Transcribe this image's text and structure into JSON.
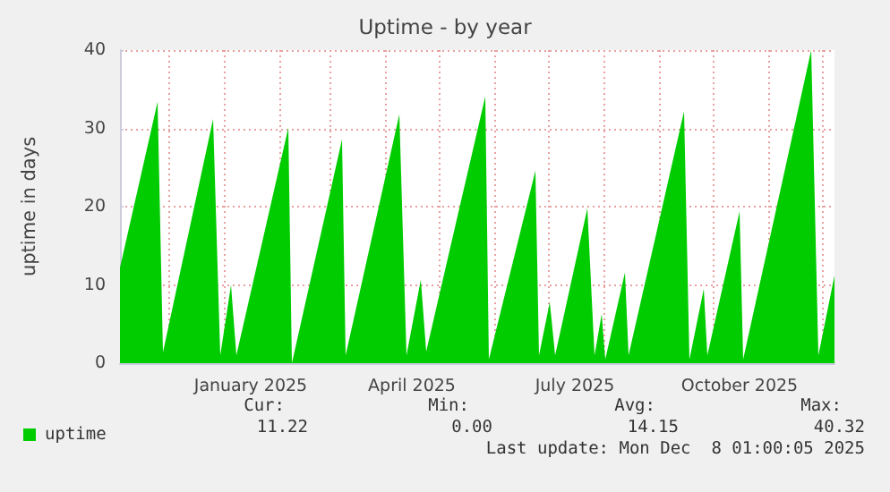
{
  "chart_data": {
    "type": "area",
    "title": "Uptime - by year",
    "ylabel": "uptime in days",
    "x": [
      "2024-11-04",
      "2024-11-25",
      "2024-11-28",
      "2024-12-26",
      "2024-12-30",
      "2025-01-05",
      "2025-01-08",
      "2025-02-06",
      "2025-02-08",
      "2025-03-08",
      "2025-03-10",
      "2025-04-09",
      "2025-04-13",
      "2025-04-21",
      "2025-04-24",
      "2025-05-27",
      "2025-05-29",
      "2025-06-24",
      "2025-06-26",
      "2025-07-02",
      "2025-07-05",
      "2025-07-23",
      "2025-07-27",
      "2025-07-31",
      "2025-08-02",
      "2025-08-13",
      "2025-08-15",
      "2025-09-15",
      "2025-09-18",
      "2025-09-26",
      "2025-09-28",
      "2025-10-16",
      "2025-10-18",
      "2025-11-25",
      "2025-11-29",
      "2025-12-08"
    ],
    "series": [
      {
        "name": "uptime",
        "color": "#00cc00",
        "values": [
          12.2,
          33.4,
          1.4,
          31.2,
          1,
          10,
          1,
          30.1,
          0,
          28.6,
          1,
          31.8,
          1,
          10.7,
          1.5,
          34.1,
          0.5,
          24.6,
          1,
          7.8,
          1,
          19.8,
          1,
          6.3,
          0.5,
          11.6,
          1,
          32.2,
          0.5,
          9.5,
          1,
          19.4,
          0.5,
          40,
          1,
          11.2
        ]
      }
    ],
    "xlim": [
      "2024-11-04",
      "2025-12-08"
    ],
    "xticks": [
      {
        "value": "2024-12-01",
        "label": null
      },
      {
        "value": "2025-01-01",
        "label": null
      },
      {
        "value": "2025-01-16",
        "label": "January 2025"
      },
      {
        "value": "2025-02-01",
        "label": null
      },
      {
        "value": "2025-03-01",
        "label": null
      },
      {
        "value": "2025-04-01",
        "label": null
      },
      {
        "value": "2025-04-16",
        "label": "April 2025"
      },
      {
        "value": "2025-05-01",
        "label": null
      },
      {
        "value": "2025-06-01",
        "label": null
      },
      {
        "value": "2025-07-01",
        "label": null
      },
      {
        "value": "2025-07-16",
        "label": "July 2025"
      },
      {
        "value": "2025-08-01",
        "label": null
      },
      {
        "value": "2025-09-01",
        "label": null
      },
      {
        "value": "2025-10-01",
        "label": null
      },
      {
        "value": "2025-10-16",
        "label": "October 2025"
      },
      {
        "value": "2025-11-01",
        "label": null
      },
      {
        "value": "2025-12-01",
        "label": null
      }
    ],
    "ylim": [
      0,
      40
    ],
    "yticks": [
      0,
      10,
      20,
      30,
      40
    ],
    "grid": true,
    "legend": "bottom left",
    "marker": "none",
    "annotations": [
      "Cur:",
      "Min:",
      "Avg:",
      "Max:",
      "11.22",
      "0.00",
      "14.15",
      "40.32",
      "Last update: Mon Dec  8 01:00:05 2025"
    ]
  }
}
